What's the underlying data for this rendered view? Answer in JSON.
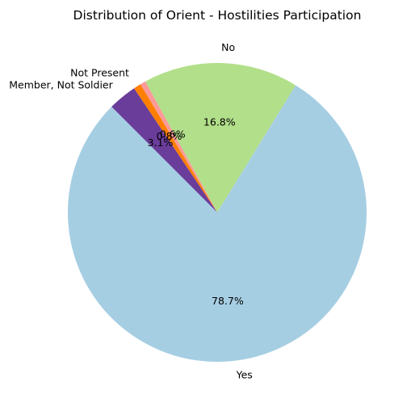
{
  "chart_data": {
    "type": "pie",
    "title": "Distribution of Orient - Hostilities Participation",
    "start_angle_deg": 135,
    "direction": "counterclockwise",
    "slices": [
      {
        "label": "Yes",
        "value": 78.7,
        "pct_label": "78.7%",
        "color": "#a6cee3"
      },
      {
        "label": "No",
        "value": 16.8,
        "pct_label": "16.8%",
        "color": "#b2df8a"
      },
      {
        "label": "",
        "value": 0.6,
        "pct_label": "0.6%",
        "color": "#fb9a99"
      },
      {
        "label": "Not Present",
        "value": 0.8,
        "pct_label": "0.8%",
        "color": "#ff7f00"
      },
      {
        "label": "Member, Not Soldier",
        "value": 3.1,
        "pct_label": "3.1%",
        "color": "#6a3d9a"
      }
    ]
  }
}
